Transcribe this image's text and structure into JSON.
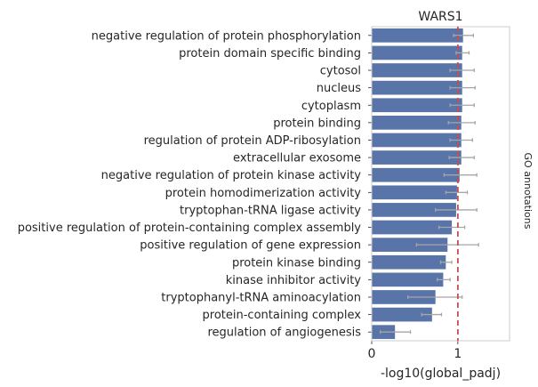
{
  "chart_data": {
    "type": "bar",
    "orientation": "horizontal",
    "title": "WARS1",
    "xlabel": "-log10(global_padj)",
    "ylabel_right": "GO annotations",
    "xlim": [
      0,
      1.6
    ],
    "xticks": [
      0,
      1
    ],
    "threshold_line": 1.0,
    "bar_color": "#5874a8",
    "error_color": "#a6a6a6",
    "threshold_color": "#c44e52",
    "grid": false,
    "categories": [
      "negative regulation of protein phosphorylation",
      "protein domain specific binding",
      "cytosol",
      "nucleus",
      "cytoplasm",
      "protein binding",
      "regulation of protein ADP-ribosylation",
      "extracellular exosome",
      "negative regulation of protein kinase activity",
      "protein homodimerization activity",
      "tryptophan-tRNA ligase activity",
      "positive regulation of protein-containing complex assembly",
      "positive regulation of gene expression",
      "protein kinase binding",
      "kinase inhibitor activity",
      "tryptophanyl-tRNA aminoacylation",
      "protein-containing complex",
      "regulation of angiogenesis"
    ],
    "values": [
      1.06,
      1.05,
      1.05,
      1.05,
      1.05,
      1.04,
      1.04,
      1.04,
      1.02,
      0.99,
      0.98,
      0.93,
      0.88,
      0.86,
      0.83,
      0.74,
      0.7,
      0.27
    ],
    "err_low": [
      0.95,
      0.98,
      0.91,
      0.91,
      0.91,
      0.89,
      0.91,
      0.9,
      0.84,
      0.86,
      0.74,
      0.78,
      0.52,
      0.8,
      0.76,
      0.42,
      0.58,
      0.1
    ],
    "err_high": [
      1.18,
      1.13,
      1.19,
      1.2,
      1.19,
      1.2,
      1.17,
      1.19,
      1.22,
      1.11,
      1.22,
      1.08,
      1.24,
      0.93,
      0.91,
      1.05,
      0.81,
      0.45
    ]
  }
}
